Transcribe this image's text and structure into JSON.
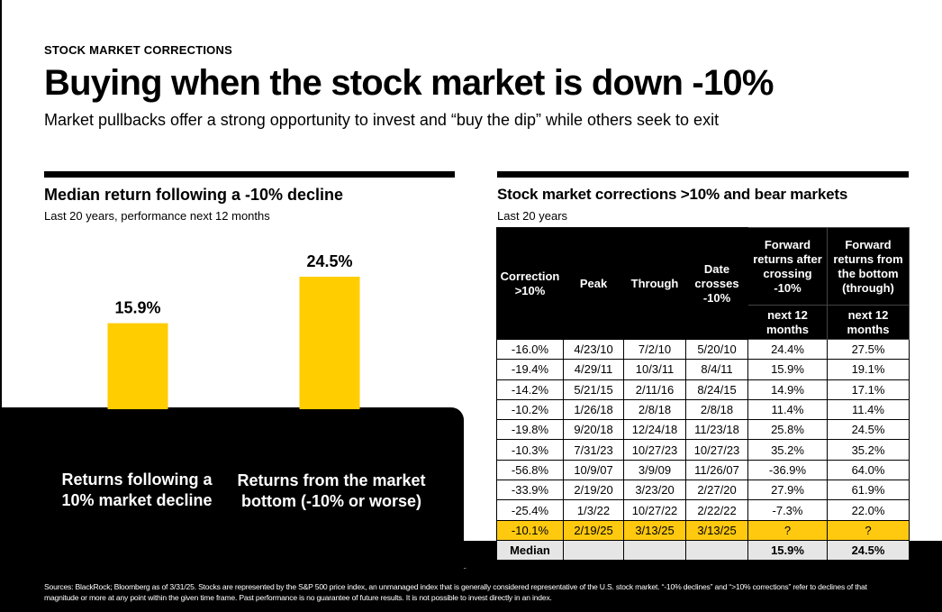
{
  "header": {
    "eyebrow": "STOCK MARKET CORRECTIONS",
    "title": "Buying when the stock market is down -10%",
    "subtitle": "Market pullbacks offer a strong opportunity to invest and “buy the dip” while others seek to exit"
  },
  "left_panel": {
    "title": "Median return following a -10% decline",
    "subtitle": "Last 20 years, performance next 12 months"
  },
  "right_panel": {
    "title": "Stock market corrections >10% and bear markets",
    "subtitle": "Last 20 years"
  },
  "chart_data": {
    "type": "bar",
    "title": "Median return following a -10% decline",
    "subtitle": "Last 20 years, performance next 12 months",
    "categories": [
      "Returns following a 10% market decline",
      "Returns from the market bottom (-10% or worse)"
    ],
    "values": [
      15.9,
      24.5
    ],
    "value_labels": [
      "15.9%",
      "24.5%"
    ],
    "unit": "%",
    "ylim": [
      0,
      24.5
    ],
    "bar_color": "#FFCD00",
    "grid": false,
    "xlabel": "",
    "ylabel": ""
  },
  "table": {
    "headers": {
      "correction": "Correction >10%",
      "peak": "Peak",
      "through": "Through",
      "date_crosses": "Date crosses -10%",
      "fwd_crossing": "Forward returns after crossing -10%",
      "fwd_bottom": "Forward returns from the bottom (through)",
      "next12_a": "next 12 months",
      "next12_b": "next 12 months"
    },
    "rows": [
      [
        "-16.0%",
        "4/23/10",
        "7/2/10",
        "5/20/10",
        "24.4%",
        "27.5%"
      ],
      [
        "-19.4%",
        "4/29/11",
        "10/3/11",
        "8/4/11",
        "15.9%",
        "19.1%"
      ],
      [
        "-14.2%",
        "5/21/15",
        "2/11/16",
        "8/24/15",
        "14.9%",
        "17.1%"
      ],
      [
        "-10.2%",
        "1/26/18",
        "2/8/18",
        "2/8/18",
        "11.4%",
        "11.4%"
      ],
      [
        "-19.8%",
        "9/20/18",
        "12/24/18",
        "11/23/18",
        "25.8%",
        "24.5%"
      ],
      [
        "-10.3%",
        "7/31/23",
        "10/27/23",
        "10/27/23",
        "35.2%",
        "35.2%"
      ],
      [
        "-56.8%",
        "10/9/07",
        "3/9/09",
        "11/26/07",
        "-36.9%",
        "64.0%"
      ],
      [
        "-33.9%",
        "2/19/20",
        "3/23/20",
        "2/27/20",
        "27.9%",
        "61.9%"
      ],
      [
        "-25.4%",
        "1/3/22",
        "10/27/22",
        "2/22/22",
        "-7.3%",
        "22.0%"
      ],
      [
        "-10.1%",
        "2/19/25",
        "3/13/25",
        "3/13/25",
        "?",
        "?"
      ]
    ],
    "median": {
      "label": "Median",
      "fwd_crossing": "15.9%",
      "fwd_bottom": "24.5%"
    },
    "highlight_color": "#FFC90F"
  },
  "footnote": "Sources: BlackRock; Bloomberg as of 3/31/25. Stocks are represented by the S&P 500 price index, an unmanaged index that is generally considered representative of the U.S. stock market. “-10% declines” and “>10% corrections” refer to declines of that magnitude or more at any point within the given time frame. Past performance is no guarantee of future results. It is not possible to invest directly in an index."
}
